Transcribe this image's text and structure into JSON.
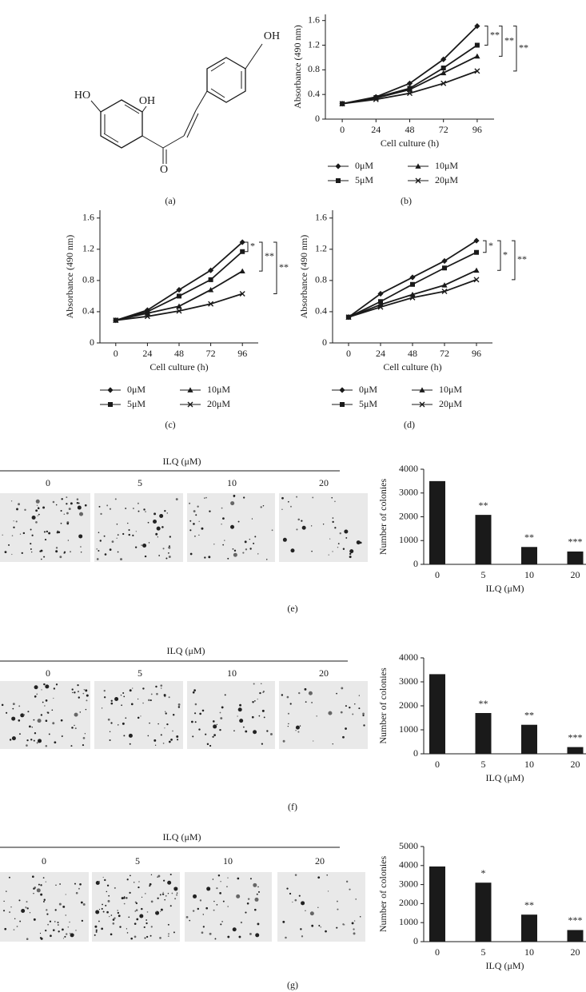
{
  "figure": {
    "panel_labels": [
      "(a)",
      "(b)",
      "(c)",
      "(d)",
      "(e)",
      "(f)",
      "(g)"
    ],
    "structure": {
      "atoms": [
        "HO",
        "OH",
        "OH",
        "O"
      ]
    }
  },
  "chart_data": [
    {
      "type": "line",
      "xlabel": "Cell culture (h)",
      "ylabel": "Absorbance (490 nm)",
      "x": [
        0,
        24,
        48,
        72,
        96
      ],
      "xticks": [
        0,
        24,
        48,
        72,
        96
      ],
      "xlim": [
        -12,
        108
      ],
      "ylim": [
        0,
        1.7
      ],
      "yticks": [
        0,
        0.4,
        0.8,
        1.2,
        1.6
      ],
      "series": [
        {
          "name": "0μM",
          "color": "#1a1a1a",
          "marker": "diamond",
          "values": [
            0.25,
            0.36,
            0.58,
            0.97,
            1.51
          ]
        },
        {
          "name": "5μM",
          "color": "#1a1a1a",
          "marker": "square",
          "values": [
            0.25,
            0.35,
            0.5,
            0.83,
            1.2
          ]
        },
        {
          "name": "10μM",
          "color": "#1a1a1a",
          "marker": "triangle",
          "values": [
            0.25,
            0.34,
            0.48,
            0.75,
            1.02
          ]
        },
        {
          "name": "20μM",
          "color": "#1a1a1a",
          "marker": "x",
          "values": [
            0.25,
            0.32,
            0.42,
            0.58,
            0.78
          ]
        }
      ],
      "significance": [
        "**",
        "**",
        "**"
      ]
    },
    {
      "type": "line",
      "xlabel": "Cell culture (h)",
      "ylabel": "Absorbance (490 nm)",
      "x": [
        0,
        24,
        48,
        72,
        96
      ],
      "xticks": [
        0,
        24,
        48,
        72,
        96
      ],
      "xlim": [
        -12,
        108
      ],
      "ylim": [
        0,
        1.7
      ],
      "yticks": [
        0,
        0.4,
        0.8,
        1.2,
        1.6
      ],
      "series": [
        {
          "name": "0μM",
          "color": "#1a1a1a",
          "marker": "diamond",
          "values": [
            0.29,
            0.42,
            0.68,
            0.93,
            1.29
          ]
        },
        {
          "name": "5μM",
          "color": "#1a1a1a",
          "marker": "square",
          "values": [
            0.29,
            0.4,
            0.6,
            0.81,
            1.17
          ]
        },
        {
          "name": "10μM",
          "color": "#1a1a1a",
          "marker": "triangle",
          "values": [
            0.29,
            0.38,
            0.47,
            0.68,
            0.92
          ]
        },
        {
          "name": "20μM",
          "color": "#1a1a1a",
          "marker": "x",
          "values": [
            0.29,
            0.34,
            0.41,
            0.5,
            0.63
          ]
        }
      ],
      "significance": [
        "*",
        "**",
        "**"
      ]
    },
    {
      "type": "line",
      "xlabel": "Cell culture (h)",
      "ylabel": "Absorbance (490 nm)",
      "x": [
        0,
        24,
        48,
        72,
        96
      ],
      "xticks": [
        0,
        24,
        48,
        72,
        96
      ],
      "xlim": [
        -12,
        108
      ],
      "ylim": [
        0,
        1.7
      ],
      "yticks": [
        0,
        0.4,
        0.8,
        1.2,
        1.6
      ],
      "series": [
        {
          "name": "0μM",
          "color": "#1a1a1a",
          "marker": "diamond",
          "values": [
            0.33,
            0.63,
            0.84,
            1.05,
            1.31
          ]
        },
        {
          "name": "5μM",
          "color": "#1a1a1a",
          "marker": "square",
          "values": [
            0.33,
            0.53,
            0.75,
            0.96,
            1.16
          ]
        },
        {
          "name": "10μM",
          "color": "#1a1a1a",
          "marker": "triangle",
          "values": [
            0.33,
            0.49,
            0.62,
            0.74,
            0.93
          ]
        },
        {
          "name": "20μM",
          "color": "#1a1a1a",
          "marker": "x",
          "values": [
            0.33,
            0.46,
            0.58,
            0.66,
            0.81
          ]
        }
      ],
      "significance": [
        "*",
        "*",
        "**"
      ]
    },
    {
      "type": "bar",
      "xlabel": "ILQ (μM)",
      "ylabel": "Number of colonies",
      "categories": [
        "0",
        "5",
        "10",
        "20"
      ],
      "values": [
        3500,
        2080,
        730,
        540
      ],
      "color": "#1a1a1a",
      "ylim": [
        0,
        4000
      ],
      "yticks": [
        0,
        1000,
        2000,
        3000,
        4000
      ],
      "significance": [
        null,
        "**",
        "**",
        "***"
      ]
    },
    {
      "type": "bar",
      "xlabel": "ILQ (μM)",
      "ylabel": "Number of colonies",
      "categories": [
        "0",
        "5",
        "10",
        "20"
      ],
      "values": [
        3320,
        1700,
        1210,
        280
      ],
      "color": "#1a1a1a",
      "ylim": [
        0,
        4000
      ],
      "yticks": [
        0,
        1000,
        2000,
        3000,
        4000
      ],
      "significance": [
        null,
        "**",
        "**",
        "***"
      ]
    },
    {
      "type": "bar",
      "xlabel": "ILQ (μM)",
      "ylabel": "Number of colonies",
      "categories": [
        "0",
        "5",
        "10",
        "20"
      ],
      "values": [
        3950,
        3100,
        1420,
        610
      ],
      "color": "#1a1a1a",
      "ylim": [
        0,
        5000
      ],
      "yticks": [
        0,
        1000,
        2000,
        3000,
        4000,
        5000
      ],
      "significance": [
        null,
        "*",
        "**",
        "***"
      ]
    }
  ],
  "images": [
    {
      "title": "ILQ (μM)",
      "labels": [
        "0",
        "5",
        "10",
        "20"
      ]
    },
    {
      "title": "ILQ (μM)",
      "labels": [
        "0",
        "5",
        "10",
        "20"
      ]
    },
    {
      "title": "ILQ (μM)",
      "labels": [
        "0",
        "5",
        "10",
        "20"
      ]
    }
  ]
}
